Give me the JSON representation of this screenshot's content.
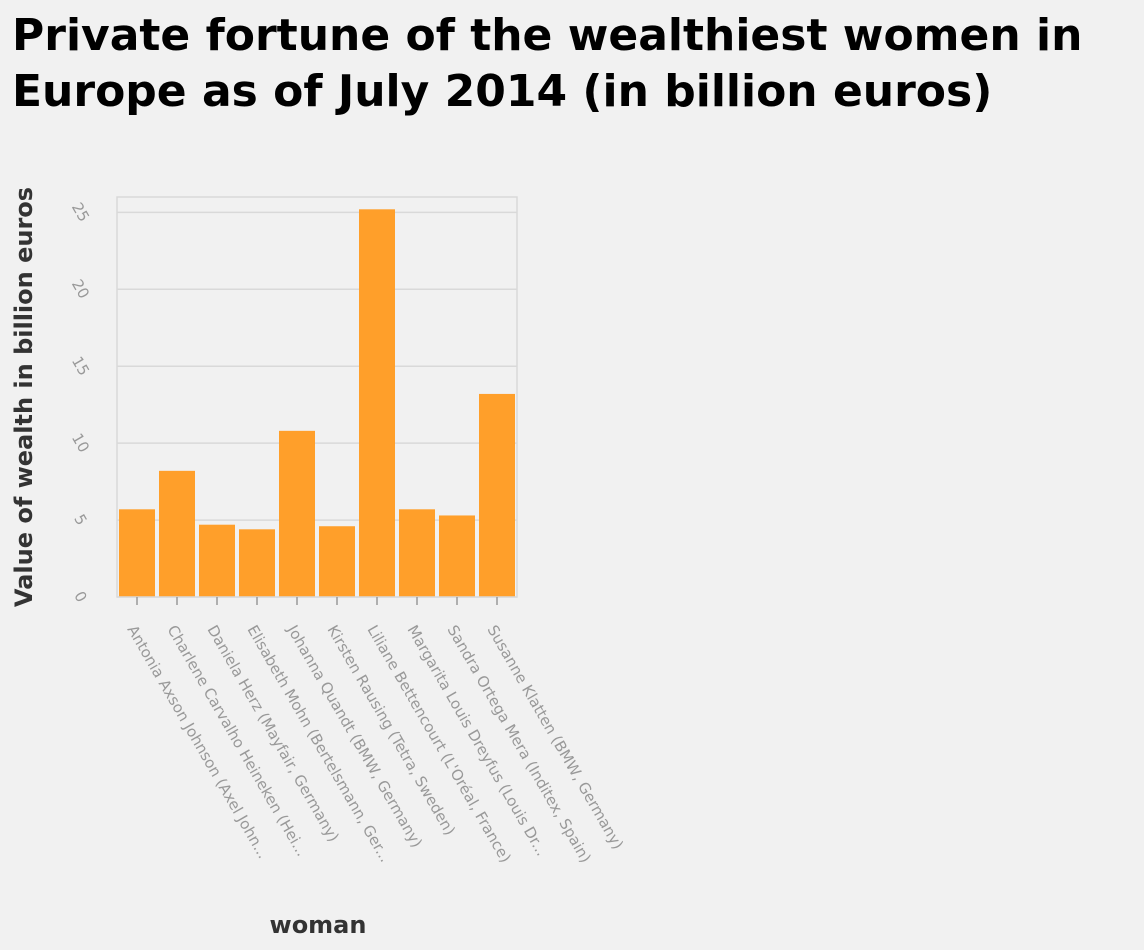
{
  "chart_data": {
    "type": "bar",
    "title": "Private fortune of the wealthiest women in Europe as of July 2014 (in billion euros)",
    "xlabel": "woman",
    "ylabel": "Value of wealth in billion euros",
    "ylim": [
      0,
      26
    ],
    "yticks": [
      "0",
      "5",
      "10",
      "15",
      "20",
      "25"
    ],
    "grid": true,
    "bar_color": "#ff9f2a",
    "categories": [
      "Antonia Axson Johnson (Axel John...",
      "Charlene Carvalho Heineken (Hei...",
      "Daniela Herz (Mayfair, Germany)",
      "Elisabeth Mohn (Bertelsmann, Ger...",
      "Johanna Quandt (BMW, Germany)",
      "Kirsten Rausing (Tetra, Sweden)",
      "Liliane Bettencourt (L'Oréal, France)",
      "Margarita Louis Dreyfus (Louis Dr...",
      "Sandra Ortega Mera (Inditex, Spain)",
      "Susanne Klatten (BMW, Germany)"
    ],
    "values": [
      5.7,
      8.2,
      4.7,
      4.4,
      10.8,
      4.6,
      25.2,
      5.7,
      5.3,
      13.2
    ]
  }
}
